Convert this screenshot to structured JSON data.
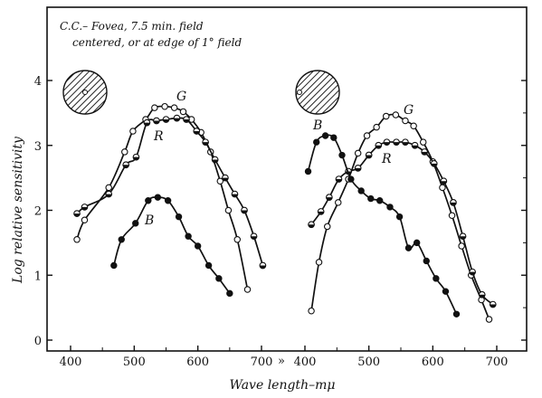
{
  "chart_data": {
    "type": "line",
    "annotation_lines": [
      "C.C.– Fovea, 7.5 min. field",
      "centered, or at edge of 1° field"
    ],
    "xlabel": "Wave length–mμ",
    "ylabel": "Log relative sensitivity",
    "ylim": [
      0,
      4.5
    ],
    "yticks": [
      "0",
      "1",
      "2",
      "3",
      "4"
    ],
    "axis_break_symbol": "»",
    "grid": false,
    "panels": [
      {
        "name": "left",
        "condition": "centered",
        "xlim": [
          380,
          740
        ],
        "xticks": [
          "400",
          "500",
          "600",
          "700"
        ],
        "series": [
          {
            "name": "G",
            "marker": "open",
            "points": [
              [
                410,
                1.55
              ],
              [
                422,
                1.85
              ],
              [
                460,
                2.35
              ],
              [
                485,
                2.9
              ],
              [
                498,
                3.22
              ],
              [
                518,
                3.4
              ],
              [
                532,
                3.58
              ],
              [
                548,
                3.6
              ],
              [
                563,
                3.58
              ],
              [
                577,
                3.52
              ],
              [
                590,
                3.4
              ],
              [
                605,
                3.2
              ],
              [
                620,
                2.9
              ],
              [
                635,
                2.45
              ],
              [
                648,
                2.0
              ],
              [
                662,
                1.55
              ],
              [
                678,
                0.78
              ]
            ]
          },
          {
            "name": "R",
            "marker": "half",
            "points": [
              [
                410,
                1.95
              ],
              [
                422,
                2.05
              ],
              [
                460,
                2.25
              ],
              [
                487,
                2.7
              ],
              [
                503,
                2.82
              ],
              [
                520,
                3.35
              ],
              [
                535,
                3.38
              ],
              [
                550,
                3.4
              ],
              [
                567,
                3.42
              ],
              [
                582,
                3.4
              ],
              [
                598,
                3.22
              ],
              [
                612,
                3.05
              ],
              [
                627,
                2.78
              ],
              [
                643,
                2.5
              ],
              [
                658,
                2.25
              ],
              [
                673,
                2.0
              ],
              [
                688,
                1.6
              ],
              [
                702,
                1.15
              ]
            ]
          },
          {
            "name": "B",
            "marker": "filled",
            "points": [
              [
                468,
                1.15
              ],
              [
                480,
                1.55
              ],
              [
                502,
                1.8
              ],
              [
                522,
                2.15
              ],
              [
                537,
                2.2
              ],
              [
                553,
                2.15
              ],
              [
                570,
                1.9
              ],
              [
                585,
                1.6
              ],
              [
                600,
                1.45
              ],
              [
                617,
                1.15
              ],
              [
                633,
                0.95
              ],
              [
                650,
                0.72
              ]
            ]
          }
        ]
      },
      {
        "name": "right",
        "condition": "at edge",
        "xlim": [
          390,
          720
        ],
        "xticks": [
          "400",
          "500",
          "600",
          "700"
        ],
        "series": [
          {
            "name": "G",
            "marker": "open",
            "points": [
              [
                410,
                0.45
              ],
              [
                422,
                1.2
              ],
              [
                435,
                1.75
              ],
              [
                452,
                2.12
              ],
              [
                468,
                2.48
              ],
              [
                483,
                2.88
              ],
              [
                497,
                3.15
              ],
              [
                512,
                3.28
              ],
              [
                527,
                3.45
              ],
              [
                542,
                3.47
              ],
              [
                557,
                3.38
              ],
              [
                570,
                3.3
              ],
              [
                585,
                3.05
              ],
              [
                600,
                2.75
              ],
              [
                615,
                2.35
              ],
              [
                630,
                1.92
              ],
              [
                645,
                1.45
              ],
              [
                660,
                1.0
              ],
              [
                676,
                0.62
              ],
              [
                688,
                0.32
              ]
            ]
          },
          {
            "name": "R",
            "marker": "half",
            "points": [
              [
                410,
                1.78
              ],
              [
                425,
                1.98
              ],
              [
                438,
                2.2
              ],
              [
                453,
                2.48
              ],
              [
                468,
                2.6
              ],
              [
                483,
                2.65
              ],
              [
                500,
                2.85
              ],
              [
                515,
                3.0
              ],
              [
                528,
                3.05
              ],
              [
                543,
                3.05
              ],
              [
                557,
                3.05
              ],
              [
                572,
                3.0
              ],
              [
                587,
                2.9
              ],
              [
                602,
                2.72
              ],
              [
                617,
                2.45
              ],
              [
                632,
                2.12
              ],
              [
                647,
                1.6
              ],
              [
                662,
                1.05
              ],
              [
                677,
                0.7
              ],
              [
                694,
                0.55
              ]
            ]
          },
          {
            "name": "B",
            "marker": "filled",
            "points": [
              [
                405,
                2.6
              ],
              [
                418,
                3.05
              ],
              [
                432,
                3.15
              ],
              [
                445,
                3.12
              ],
              [
                458,
                2.85
              ],
              [
                472,
                2.48
              ],
              [
                488,
                2.3
              ],
              [
                503,
                2.18
              ],
              [
                517,
                2.15
              ],
              [
                533,
                2.05
              ],
              [
                548,
                1.9
              ],
              [
                562,
                1.42
              ],
              [
                575,
                1.5
              ],
              [
                590,
                1.22
              ],
              [
                605,
                0.95
              ],
              [
                620,
                0.75
              ],
              [
                637,
                0.4
              ]
            ]
          }
        ]
      }
    ],
    "legend": [],
    "field_icons": [
      "centered",
      "at edge"
    ]
  }
}
